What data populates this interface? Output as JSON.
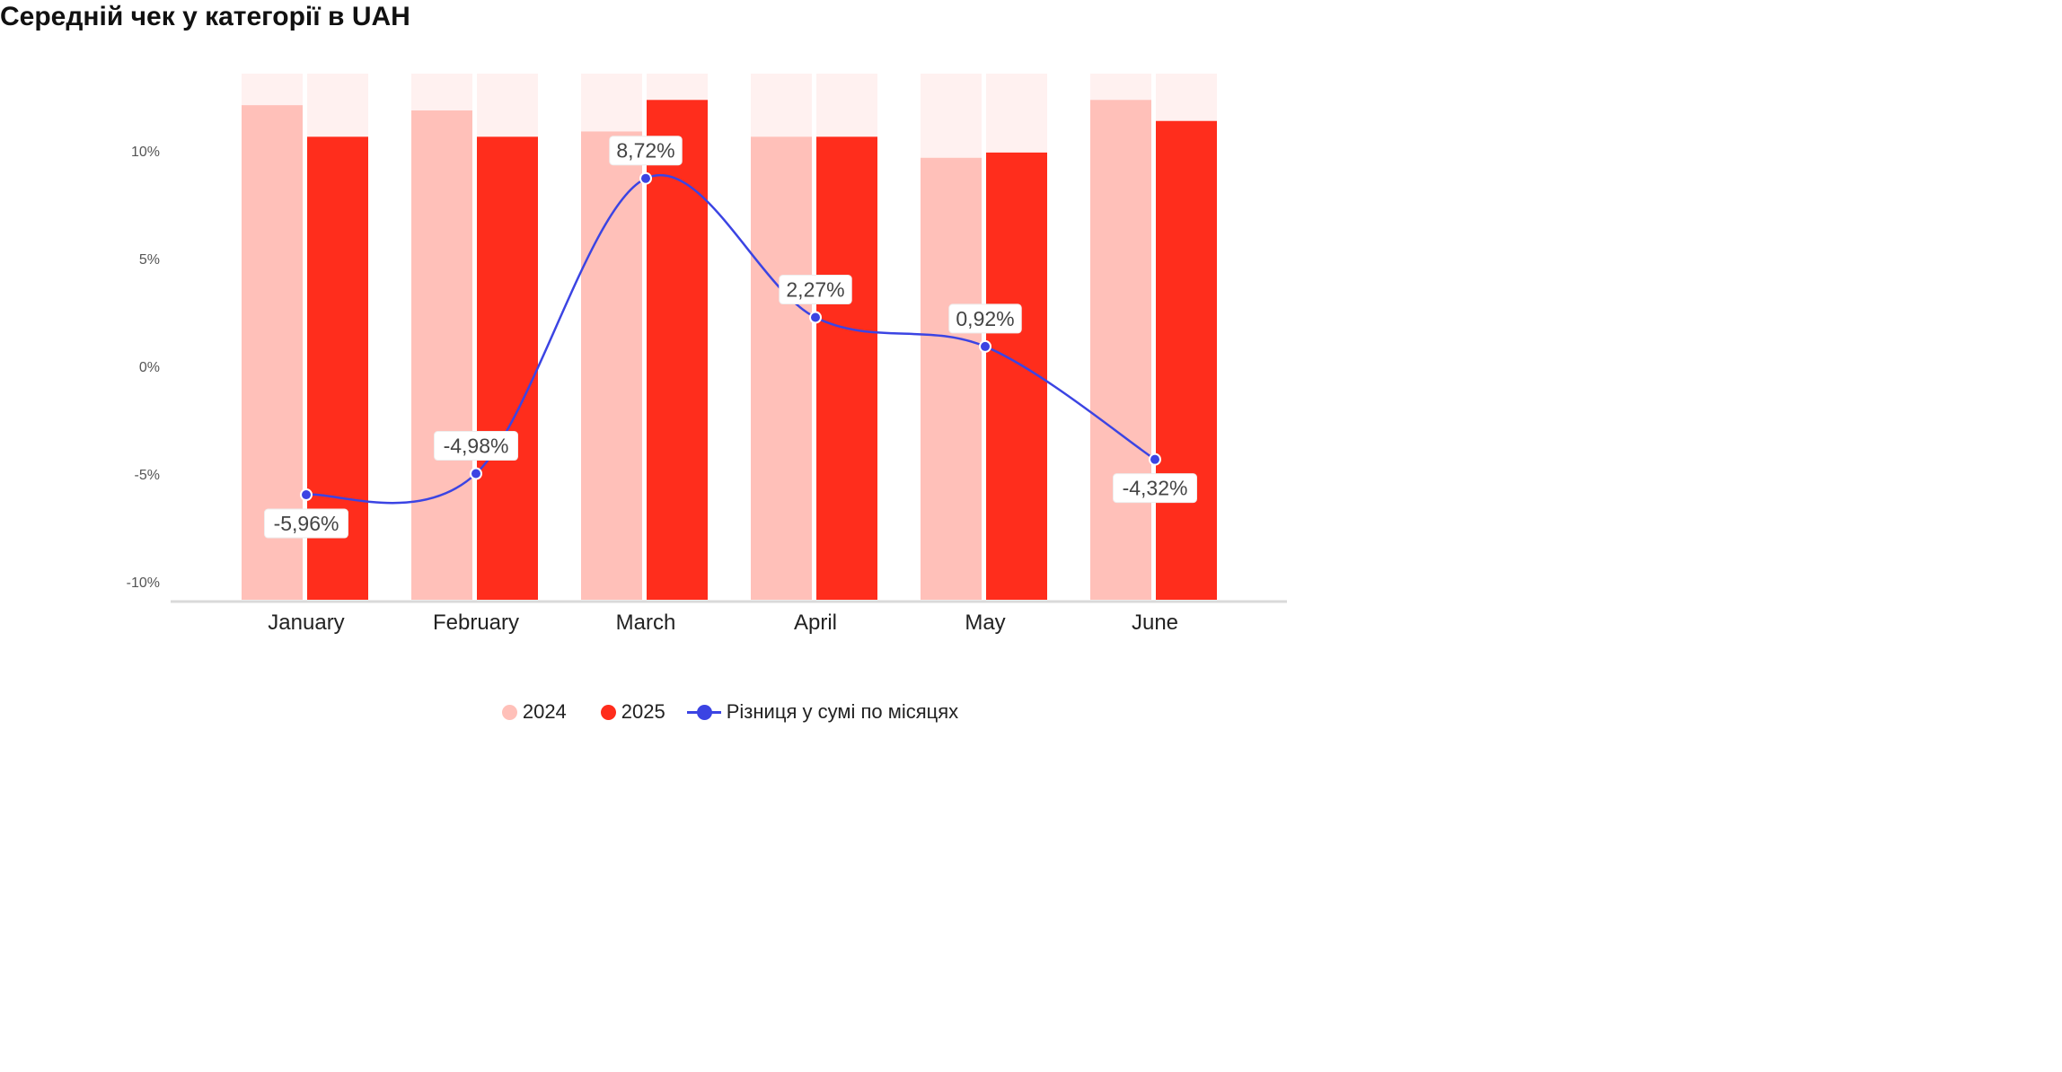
{
  "title": "Середній чек у категорії в UAH",
  "legend": {
    "series_2024": "2024",
    "series_2025": "2025",
    "series_diff": "Різниця у сумі по місяцях"
  },
  "colors": {
    "bar_2024": "#ffc0b9",
    "bar_2025": "#ff2d1c",
    "bar_background": "#fff1f0",
    "diff_line": "#3b44e3",
    "axis": "#d9d9d9",
    "axis_text": "#555555",
    "label_text": "#444444"
  },
  "chart_data": {
    "type": "bar+line",
    "categories": [
      "January",
      "February",
      "March",
      "April",
      "May",
      "June"
    ],
    "series": [
      {
        "name": "2024",
        "type": "bar",
        "values": [
          94,
          93,
          89,
          88,
          84,
          95
        ]
      },
      {
        "name": "2025",
        "type": "bar",
        "values": [
          88,
          88,
          95,
          88,
          85,
          91
        ]
      },
      {
        "name": "Різниця у сумі по місяцях",
        "type": "line",
        "axis": "left",
        "values": [
          -5.96,
          -4.98,
          8.72,
          2.27,
          0.92,
          -4.32
        ]
      }
    ],
    "data_labels": [
      "-5,96%",
      "-4,98%",
      "8,72%",
      "2,27%",
      "0,92%",
      "-4,32%"
    ],
    "bar_scale_max": 100,
    "y_axis": {
      "ticks": [
        10,
        5,
        0,
        -5,
        -10
      ],
      "tick_labels": [
        "10%",
        "5%",
        "0%",
        "-5%",
        "-10%"
      ],
      "range": [
        -10.9,
        13.5
      ]
    },
    "grid": false,
    "legend_position": "bottom"
  }
}
